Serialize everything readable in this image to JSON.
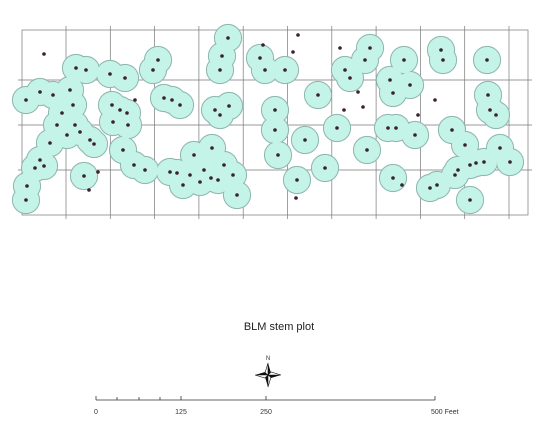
{
  "map": {
    "title": "BLM stem plot",
    "north_label": "N",
    "scale_bar": {
      "labels": [
        "0",
        "125",
        "250",
        "500 Feet"
      ]
    }
  }
}
